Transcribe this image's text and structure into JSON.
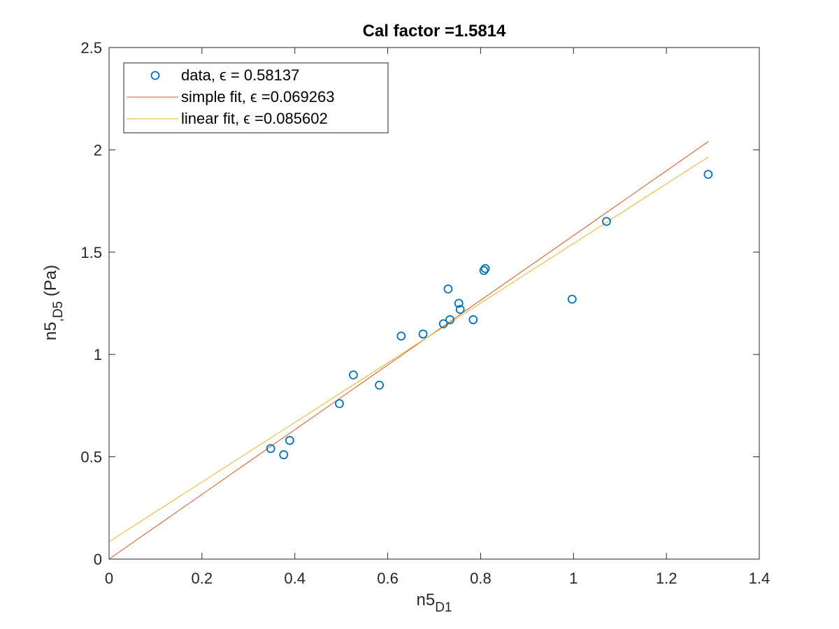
{
  "chart_data": {
    "type": "scatter",
    "title": "Cal factor =1.5814",
    "xlabel": {
      "main": "n5",
      "sub": "D1"
    },
    "ylabel": {
      "main": "n5",
      "sub": ",D5",
      "suffix": " (Pa)"
    },
    "xlim": [
      0,
      1.4
    ],
    "ylim": [
      0,
      2.5
    ],
    "xticks": [
      0,
      0.2,
      0.4,
      0.6,
      0.8,
      1,
      1.2,
      1.4
    ],
    "xtick_labels": [
      "0",
      "0.2",
      "0.4",
      "0.6",
      "0.8",
      "1",
      "1.2",
      "1.4"
    ],
    "yticks": [
      0,
      0.5,
      1,
      1.5,
      2,
      2.5
    ],
    "ytick_labels": [
      "0",
      "0.5",
      "1",
      "1.5",
      "2",
      "2.5"
    ],
    "grid": false,
    "legend_position": "top-left",
    "series": [
      {
        "name": "data, ϵ = 0.58137",
        "kind": "markers",
        "marker": "circle",
        "color": "#0072BD",
        "x": [
          0.348,
          0.376,
          0.389,
          0.496,
          0.526,
          0.582,
          0.629,
          0.676,
          0.72,
          0.73,
          0.734,
          0.753,
          0.756,
          0.784,
          0.807,
          0.81,
          0.997,
          1.071,
          1.29
        ],
        "y": [
          0.54,
          0.51,
          0.58,
          0.76,
          0.9,
          0.85,
          1.09,
          1.1,
          1.15,
          1.32,
          1.17,
          1.25,
          1.22,
          1.17,
          1.41,
          1.42,
          1.27,
          1.65,
          1.88
        ]
      },
      {
        "name": "simple fit, ϵ =0.069263",
        "kind": "line",
        "color": "#D95319",
        "x": [
          0,
          1.29
        ],
        "y": [
          0,
          2.04
        ]
      },
      {
        "name": "linear fit, ϵ =0.085602",
        "kind": "line",
        "color": "#EDB120",
        "x": [
          0,
          1.29
        ],
        "y": [
          0.085,
          1.965
        ]
      }
    ]
  }
}
